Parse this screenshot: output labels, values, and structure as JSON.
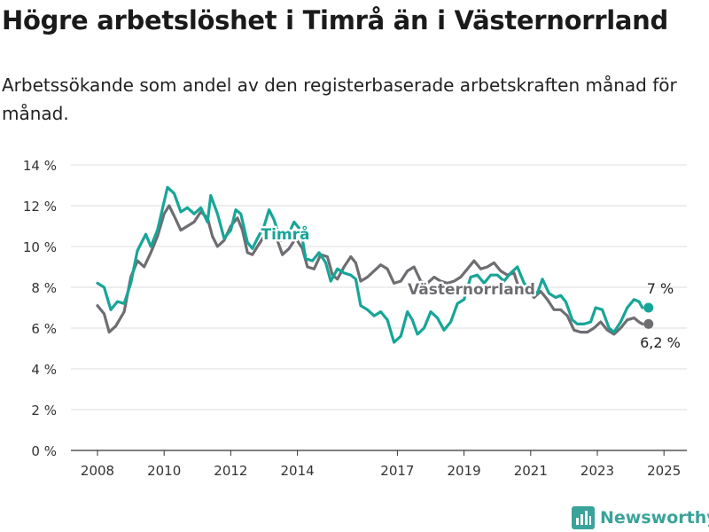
{
  "title": "Högre arbetslöshet i Timrå än i Västernorrland",
  "subtitle": "Arbetssökande som andel av den registerbaserade arbetskraften månad för månad.",
  "brand": "Newsworthy",
  "colors": {
    "timra": "#17a598",
    "vasternorrland": "#6e6d72",
    "grid": "#dcdcdc",
    "axis": "#333333",
    "brand": "#3aa39a"
  },
  "chart_data": {
    "type": "line",
    "x_tick_labels": [
      "2008",
      "2010",
      "2012",
      "2014",
      "2017",
      "2019",
      "2021",
      "2023",
      "2025"
    ],
    "y_tick_labels": [
      "0 %",
      "2 %",
      "4 %",
      "6 %",
      "8 %",
      "10 %",
      "12 %",
      "14 %"
    ],
    "ylim": [
      0,
      14
    ],
    "grid": true,
    "series": [
      {
        "name": "Timrå",
        "color": "#17a598",
        "end_label": "7 %",
        "points": [
          [
            2008.0,
            8.2
          ],
          [
            2008.2,
            8.0
          ],
          [
            2008.4,
            6.9
          ],
          [
            2008.6,
            7.3
          ],
          [
            2008.8,
            7.2
          ],
          [
            2009.0,
            8.2
          ],
          [
            2009.2,
            9.8
          ],
          [
            2009.45,
            10.6
          ],
          [
            2009.6,
            10.0
          ],
          [
            2009.8,
            10.8
          ],
          [
            2010.0,
            12.2
          ],
          [
            2010.1,
            12.9
          ],
          [
            2010.3,
            12.6
          ],
          [
            2010.5,
            11.7
          ],
          [
            2010.7,
            11.9
          ],
          [
            2010.9,
            11.6
          ],
          [
            2011.1,
            11.9
          ],
          [
            2011.3,
            11.2
          ],
          [
            2011.4,
            12.5
          ],
          [
            2011.6,
            11.6
          ],
          [
            2011.8,
            10.4
          ],
          [
            2012.0,
            10.8
          ],
          [
            2012.15,
            11.8
          ],
          [
            2012.3,
            11.6
          ],
          [
            2012.5,
            10.2
          ],
          [
            2012.65,
            9.9
          ],
          [
            2012.8,
            10.4
          ],
          [
            2013.0,
            11.0
          ],
          [
            2013.15,
            11.8
          ],
          [
            2013.3,
            11.3
          ],
          [
            2013.5,
            10.3
          ],
          [
            2013.7,
            10.5
          ],
          [
            2013.9,
            11.2
          ],
          [
            2014.1,
            10.8
          ],
          [
            2014.25,
            9.4
          ],
          [
            2014.45,
            9.3
          ],
          [
            2014.65,
            9.7
          ],
          [
            2014.85,
            9.2
          ],
          [
            2015.0,
            8.3
          ],
          [
            2015.2,
            8.9
          ],
          [
            2015.4,
            8.7
          ],
          [
            2015.6,
            8.6
          ],
          [
            2015.75,
            8.4
          ],
          [
            2015.9,
            7.1
          ],
          [
            2016.1,
            6.9
          ],
          [
            2016.3,
            6.6
          ],
          [
            2016.5,
            6.8
          ],
          [
            2016.7,
            6.4
          ],
          [
            2016.9,
            5.3
          ],
          [
            2017.1,
            5.6
          ],
          [
            2017.3,
            6.8
          ],
          [
            2017.45,
            6.4
          ],
          [
            2017.6,
            5.7
          ],
          [
            2017.8,
            6.0
          ],
          [
            2018.0,
            6.8
          ],
          [
            2018.2,
            6.5
          ],
          [
            2018.4,
            5.9
          ],
          [
            2018.6,
            6.3
          ],
          [
            2018.8,
            7.2
          ],
          [
            2019.0,
            7.4
          ],
          [
            2019.2,
            8.5
          ],
          [
            2019.4,
            8.6
          ],
          [
            2019.6,
            8.2
          ],
          [
            2019.8,
            8.6
          ],
          [
            2020.0,
            8.6
          ],
          [
            2020.2,
            8.3
          ],
          [
            2020.4,
            8.7
          ],
          [
            2020.6,
            9.0
          ],
          [
            2020.8,
            8.2
          ],
          [
            2021.0,
            7.9
          ],
          [
            2021.2,
            7.7
          ],
          [
            2021.35,
            8.4
          ],
          [
            2021.55,
            7.7
          ],
          [
            2021.75,
            7.5
          ],
          [
            2021.9,
            7.6
          ],
          [
            2022.05,
            7.3
          ],
          [
            2022.25,
            6.4
          ],
          [
            2022.4,
            6.2
          ],
          [
            2022.6,
            6.2
          ],
          [
            2022.8,
            6.3
          ],
          [
            2022.95,
            7.0
          ],
          [
            2023.15,
            6.9
          ],
          [
            2023.35,
            6.0
          ],
          [
            2023.5,
            5.8
          ],
          [
            2023.7,
            6.3
          ],
          [
            2023.9,
            7.0
          ],
          [
            2024.1,
            7.4
          ],
          [
            2024.25,
            7.3
          ],
          [
            2024.35,
            7.0
          ]
        ]
      },
      {
        "name": "Västernorrland",
        "color": "#6e6d72",
        "end_label": "6,2 %",
        "points": [
          [
            2008.0,
            7.1
          ],
          [
            2008.2,
            6.7
          ],
          [
            2008.35,
            5.8
          ],
          [
            2008.55,
            6.1
          ],
          [
            2008.8,
            6.8
          ],
          [
            2009.0,
            8.5
          ],
          [
            2009.2,
            9.3
          ],
          [
            2009.4,
            9.0
          ],
          [
            2009.6,
            9.7
          ],
          [
            2009.8,
            10.5
          ],
          [
            2010.0,
            11.6
          ],
          [
            2010.15,
            12.0
          ],
          [
            2010.3,
            11.5
          ],
          [
            2010.5,
            10.8
          ],
          [
            2010.7,
            11.0
          ],
          [
            2010.9,
            11.2
          ],
          [
            2011.1,
            11.7
          ],
          [
            2011.3,
            11.4
          ],
          [
            2011.45,
            10.5
          ],
          [
            2011.6,
            10.0
          ],
          [
            2011.8,
            10.3
          ],
          [
            2012.0,
            11.0
          ],
          [
            2012.2,
            11.4
          ],
          [
            2012.35,
            10.8
          ],
          [
            2012.5,
            9.7
          ],
          [
            2012.65,
            9.6
          ],
          [
            2012.8,
            10.0
          ],
          [
            2013.0,
            10.5
          ],
          [
            2013.2,
            10.8
          ],
          [
            2013.4,
            10.3
          ],
          [
            2013.55,
            9.6
          ],
          [
            2013.75,
            9.9
          ],
          [
            2013.95,
            10.4
          ],
          [
            2014.15,
            9.9
          ],
          [
            2014.3,
            9.0
          ],
          [
            2014.5,
            8.9
          ],
          [
            2014.7,
            9.6
          ],
          [
            2014.9,
            9.5
          ],
          [
            2015.05,
            8.6
          ],
          [
            2015.2,
            8.4
          ],
          [
            2015.4,
            9.0
          ],
          [
            2015.6,
            9.5
          ],
          [
            2015.75,
            9.2
          ],
          [
            2015.9,
            8.3
          ],
          [
            2016.1,
            8.5
          ],
          [
            2016.3,
            8.8
          ],
          [
            2016.5,
            9.1
          ],
          [
            2016.7,
            8.9
          ],
          [
            2016.9,
            8.2
          ],
          [
            2017.1,
            8.3
          ],
          [
            2017.3,
            8.8
          ],
          [
            2017.5,
            9.0
          ],
          [
            2017.7,
            8.3
          ],
          [
            2017.9,
            8.2
          ],
          [
            2018.1,
            8.5
          ],
          [
            2018.3,
            8.3
          ],
          [
            2018.5,
            8.2
          ],
          [
            2018.7,
            8.3
          ],
          [
            2018.9,
            8.5
          ],
          [
            2019.1,
            8.9
          ],
          [
            2019.3,
            9.3
          ],
          [
            2019.5,
            8.9
          ],
          [
            2019.7,
            9.0
          ],
          [
            2019.9,
            9.2
          ],
          [
            2020.1,
            8.8
          ],
          [
            2020.3,
            8.6
          ],
          [
            2020.5,
            8.7
          ],
          [
            2020.7,
            7.7
          ],
          [
            2020.9,
            7.9
          ],
          [
            2021.1,
            7.5
          ],
          [
            2021.3,
            7.8
          ],
          [
            2021.5,
            7.4
          ],
          [
            2021.7,
            6.9
          ],
          [
            2021.9,
            6.9
          ],
          [
            2022.1,
            6.6
          ],
          [
            2022.3,
            5.9
          ],
          [
            2022.5,
            5.8
          ],
          [
            2022.7,
            5.8
          ],
          [
            2022.9,
            6.0
          ],
          [
            2023.1,
            6.3
          ],
          [
            2023.3,
            5.9
          ],
          [
            2023.5,
            5.7
          ],
          [
            2023.7,
            6.0
          ],
          [
            2023.9,
            6.4
          ],
          [
            2024.1,
            6.5
          ],
          [
            2024.25,
            6.3
          ],
          [
            2024.35,
            6.2
          ]
        ]
      }
    ]
  }
}
